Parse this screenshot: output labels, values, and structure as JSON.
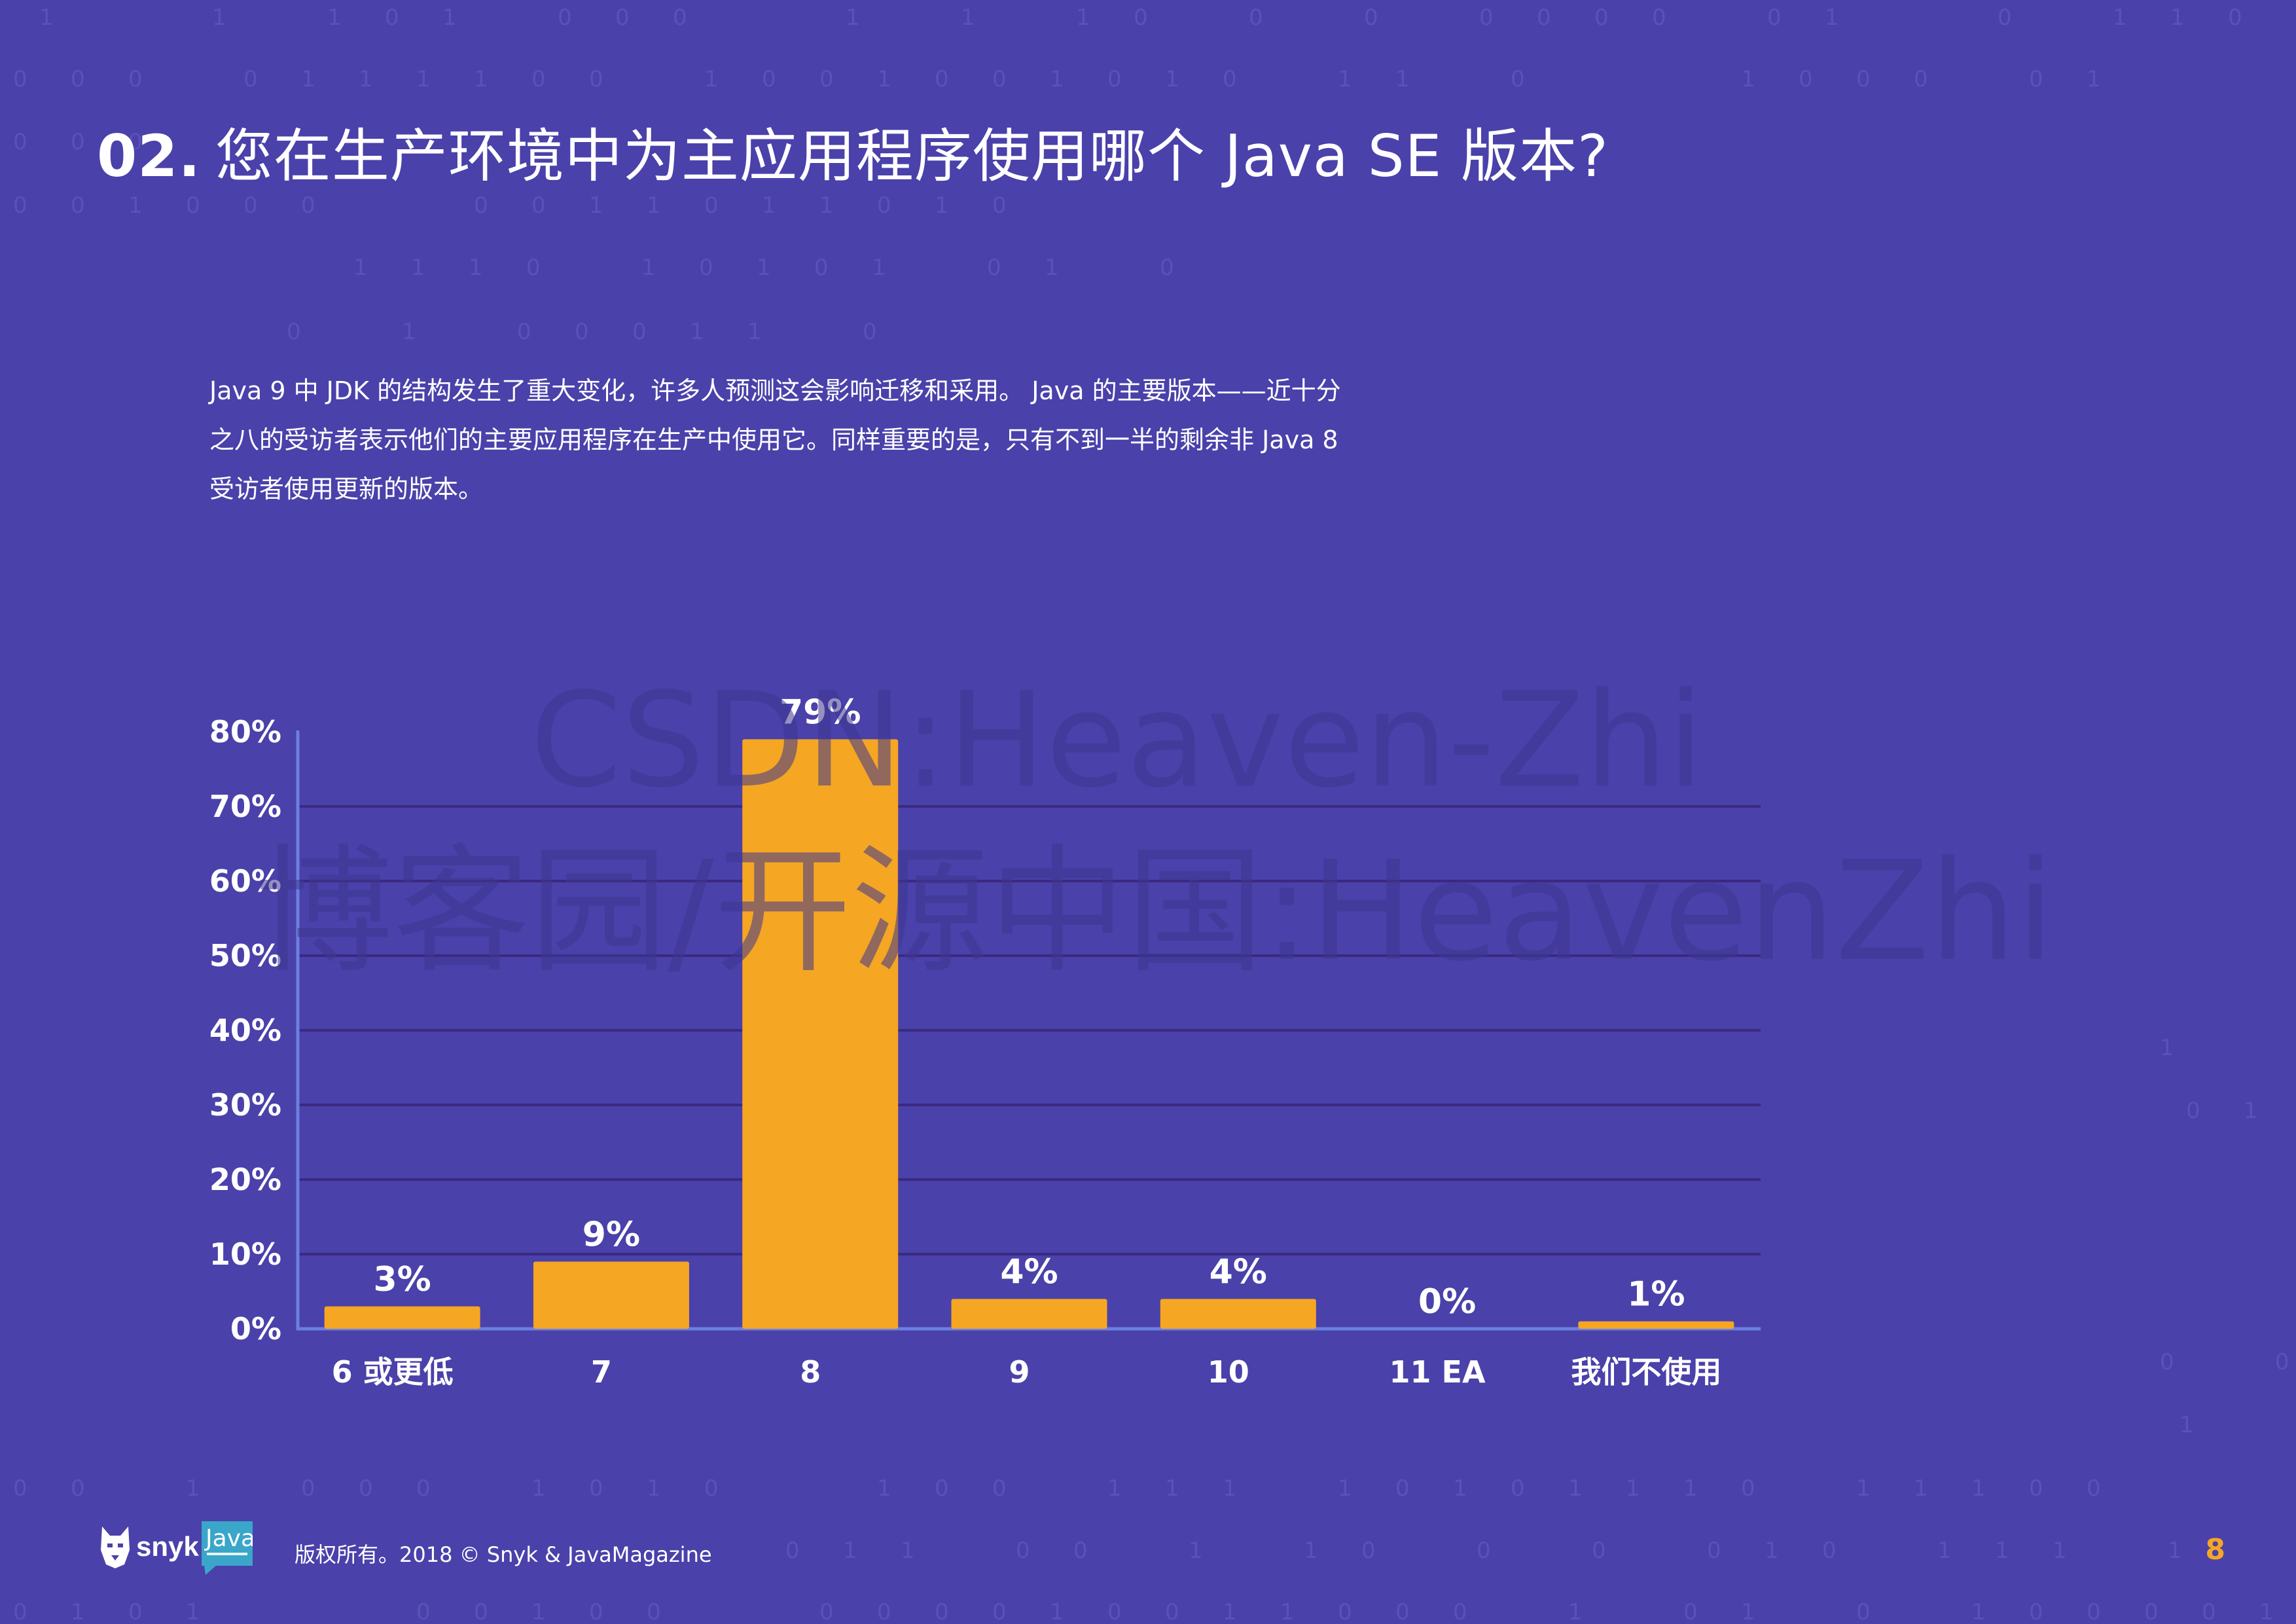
{
  "header": {
    "number": "02.",
    "title": "您在生产环境中为主应用程序使用哪个 Java SE 版本?"
  },
  "intro": {
    "lines": [
      "Java 9 中 JDK 的结构发生了重大变化，许多人预测这会影响迁移和采用。 Java 的主要版本——近十分",
      "之八的受访者表示他们的主要应用程序在生产中使用它。同样重要的是，只有不到一半的剩余非 Java 8",
      "受访者使用更新的版本。"
    ]
  },
  "chart_data": {
    "type": "bar",
    "categories": [
      "6 或更低",
      "7",
      "8",
      "9",
      "10",
      "11 EA",
      "我们不使用"
    ],
    "values": [
      3,
      9,
      79,
      4,
      4,
      0,
      1
    ],
    "value_labels": [
      "3%",
      "9%",
      "79%",
      "4%",
      "4%",
      "0%",
      "1%"
    ],
    "y_ticks": [
      "0%",
      "10%",
      "20%",
      "30%",
      "40%",
      "50%",
      "60%",
      "70%",
      "80%"
    ],
    "ylim": [
      0,
      80
    ],
    "grid": true,
    "colors": {
      "bar": "#f5a623",
      "axis": "#6b7fe3",
      "grid": "#3a2a80"
    }
  },
  "watermark": {
    "line1": "CSDN:Heaven-Zhi",
    "line2": "博客园/开源中国:HeavenZhi"
  },
  "footer": {
    "brand": "snyk",
    "java_logo": "Java",
    "copyright": "版权所有。2018 © Snyk & JavaMagazine",
    "page_number": "8"
  }
}
